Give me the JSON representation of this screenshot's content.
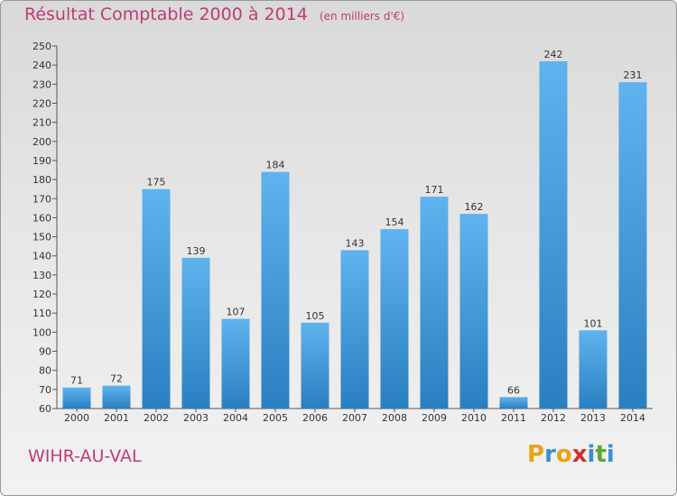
{
  "title": "Résultat Comptable 2000 à 2014",
  "unit": "(en milliers d'€)",
  "commune": "WIHR-AU-VAL",
  "logo": {
    "text": "Proxiti",
    "letters": [
      {
        "ch": "P",
        "color": "#e8a317"
      },
      {
        "ch": "r",
        "color": "#3b8ed4"
      },
      {
        "ch": "o",
        "color": "#e8a317"
      },
      {
        "ch": "x",
        "color": "#d12f2f"
      },
      {
        "ch": "i",
        "color": "#3b8ed4"
      },
      {
        "ch": "t",
        "color": "#5aa832"
      },
      {
        "ch": "i",
        "color": "#3b8ed4"
      }
    ]
  },
  "chart_data": {
    "type": "bar",
    "title": "Résultat Comptable 2000 à 2014",
    "subtitle": "(en milliers d'€)",
    "categories": [
      "2000",
      "2001",
      "2002",
      "2003",
      "2004",
      "2005",
      "2006",
      "2007",
      "2008",
      "2009",
      "2010",
      "2011",
      "2012",
      "2013",
      "2014"
    ],
    "values": [
      71,
      72,
      175,
      139,
      107,
      184,
      105,
      143,
      154,
      171,
      162,
      66,
      242,
      101,
      231
    ],
    "ylim": [
      60,
      250
    ],
    "ytick_step": 10,
    "grid": false,
    "bar_color": "#4aa3e4",
    "bar_color_dark": "#2a7fc1"
  }
}
